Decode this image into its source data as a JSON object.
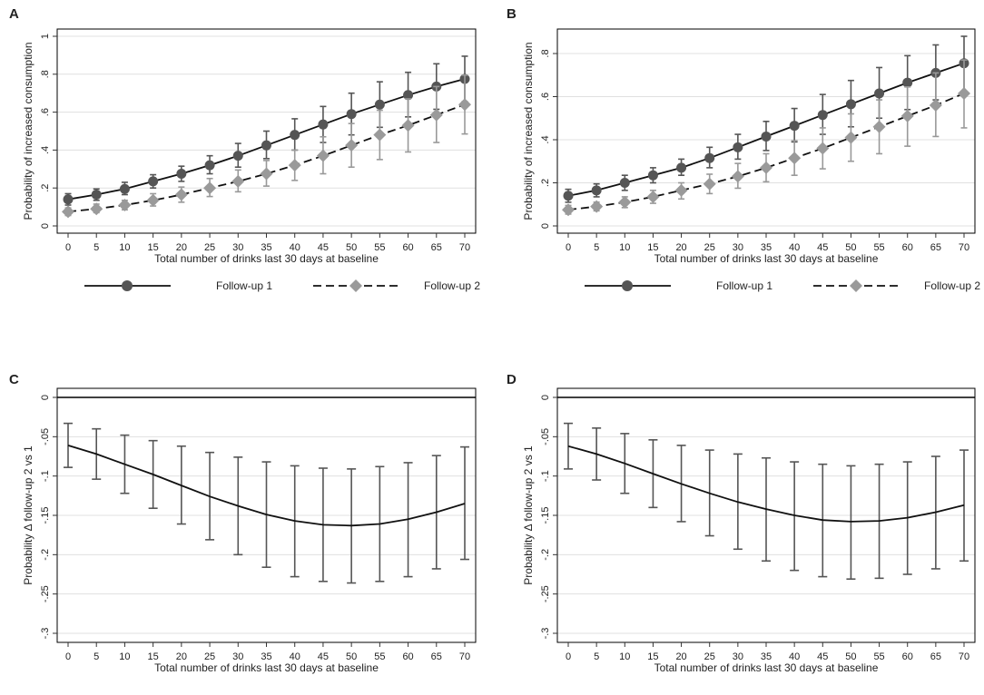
{
  "colors": {
    "fu1": "#555555",
    "fu2": "#9a9a9a",
    "fu1_err": "#555555",
    "fu2_err": "#999999",
    "line": "#111111",
    "grid": "#e0e0e0",
    "frame": "#000000",
    "axis": "#333333"
  },
  "chart_data": [
    {
      "id": "A",
      "panel_label": "A",
      "type": "line",
      "ylabel": "Probability of increased consumption",
      "xlabel": "Total number of drinks last 30 days at baseline",
      "x": [
        0,
        5,
        10,
        15,
        20,
        25,
        30,
        35,
        40,
        45,
        50,
        55,
        60,
        65,
        70
      ],
      "xlim": [
        0,
        70
      ],
      "ylim": [
        0,
        1
      ],
      "yticks": [
        0,
        0.2,
        0.4,
        0.6,
        0.8,
        1
      ],
      "ytick_labels": [
        "0",
        ".2",
        ".4",
        ".6",
        ".8",
        "1"
      ],
      "legend": [
        "Follow-up 1",
        "Follow-up 2"
      ],
      "series": [
        {
          "name": "Follow-up 1",
          "marker": "circle",
          "dash": "solid",
          "values": [
            0.14,
            0.165,
            0.195,
            0.235,
            0.275,
            0.32,
            0.37,
            0.425,
            0.48,
            0.535,
            0.59,
            0.64,
            0.69,
            0.735,
            0.775
          ],
          "lower": [
            0.11,
            0.135,
            0.165,
            0.2,
            0.235,
            0.275,
            0.31,
            0.355,
            0.4,
            0.44,
            0.48,
            0.52,
            0.575,
            0.615,
            0.655
          ],
          "upper": [
            0.17,
            0.195,
            0.23,
            0.27,
            0.315,
            0.37,
            0.435,
            0.5,
            0.565,
            0.63,
            0.7,
            0.76,
            0.81,
            0.855,
            0.895
          ]
        },
        {
          "name": "Follow-up 2",
          "marker": "diamond",
          "dash": "dashed",
          "values": [
            0.075,
            0.09,
            0.11,
            0.135,
            0.165,
            0.2,
            0.235,
            0.275,
            0.32,
            0.37,
            0.425,
            0.48,
            0.53,
            0.585,
            0.64
          ],
          "lower": [
            0.055,
            0.07,
            0.085,
            0.105,
            0.125,
            0.155,
            0.18,
            0.21,
            0.24,
            0.275,
            0.31,
            0.35,
            0.39,
            0.44,
            0.485
          ],
          "upper": [
            0.095,
            0.115,
            0.135,
            0.17,
            0.205,
            0.25,
            0.295,
            0.345,
            0.4,
            0.47,
            0.54,
            0.61,
            0.67,
            0.735,
            0.795
          ]
        }
      ]
    },
    {
      "id": "B",
      "panel_label": "B",
      "type": "line",
      "ylabel": "Probability of increased consumption",
      "xlabel": "Total number of drinks last 30 days at baseline",
      "x": [
        0,
        5,
        10,
        15,
        20,
        25,
        30,
        35,
        40,
        45,
        50,
        55,
        60,
        65,
        70
      ],
      "xlim": [
        0,
        70
      ],
      "ylim": [
        0,
        0.88
      ],
      "yticks": [
        0,
        0.2,
        0.4,
        0.6,
        0.8
      ],
      "ytick_labels": [
        "0",
        ".2",
        ".4",
        ".6",
        ".8"
      ],
      "legend": [
        "Follow-up 1",
        "Follow-up 2"
      ],
      "series": [
        {
          "name": "Follow-up 1",
          "marker": "circle",
          "dash": "solid",
          "values": [
            0.14,
            0.165,
            0.2,
            0.235,
            0.27,
            0.315,
            0.365,
            0.415,
            0.465,
            0.515,
            0.565,
            0.615,
            0.665,
            0.71,
            0.755
          ],
          "lower": [
            0.11,
            0.135,
            0.165,
            0.2,
            0.235,
            0.27,
            0.31,
            0.35,
            0.39,
            0.425,
            0.46,
            0.5,
            0.54,
            0.585,
            0.625
          ],
          "upper": [
            0.17,
            0.195,
            0.235,
            0.27,
            0.31,
            0.365,
            0.425,
            0.485,
            0.545,
            0.61,
            0.675,
            0.735,
            0.79,
            0.84,
            0.88
          ]
        },
        {
          "name": "Follow-up 2",
          "marker": "diamond",
          "dash": "dashed",
          "values": [
            0.075,
            0.09,
            0.11,
            0.135,
            0.165,
            0.195,
            0.23,
            0.27,
            0.315,
            0.36,
            0.41,
            0.46,
            0.51,
            0.56,
            0.615
          ],
          "lower": [
            0.055,
            0.07,
            0.085,
            0.105,
            0.125,
            0.15,
            0.175,
            0.205,
            0.235,
            0.265,
            0.3,
            0.335,
            0.37,
            0.415,
            0.455
          ],
          "upper": [
            0.095,
            0.11,
            0.135,
            0.165,
            0.2,
            0.24,
            0.29,
            0.335,
            0.395,
            0.455,
            0.52,
            0.585,
            0.645,
            0.71,
            0.77
          ]
        }
      ]
    },
    {
      "id": "C",
      "panel_label": "C",
      "type": "line",
      "ylabel": "Probability Δ follow-up 2 vs 1",
      "xlabel": "Total number of drinks last 30 days at baseline",
      "x": [
        0,
        5,
        10,
        15,
        20,
        25,
        30,
        35,
        40,
        45,
        50,
        55,
        60,
        65,
        70
      ],
      "xlim": [
        0,
        70
      ],
      "ylim": [
        -0.3,
        0
      ],
      "yticks": [
        0,
        -0.05,
        -0.1,
        -0.15,
        -0.2,
        -0.25,
        -0.3
      ],
      "ytick_labels": [
        "0",
        "-.05",
        "-.1",
        "-.15",
        "-.2",
        "-.25",
        "-.3"
      ],
      "reference_line": 0,
      "series": [
        {
          "name": "Difference",
          "marker": "none",
          "dash": "solid",
          "values": [
            -0.061,
            -0.072,
            -0.085,
            -0.098,
            -0.112,
            -0.126,
            -0.138,
            -0.149,
            -0.157,
            -0.162,
            -0.163,
            -0.161,
            -0.155,
            -0.146,
            -0.135
          ],
          "lower": [
            -0.089,
            -0.104,
            -0.122,
            -0.141,
            -0.161,
            -0.181,
            -0.2,
            -0.216,
            -0.228,
            -0.234,
            -0.236,
            -0.234,
            -0.228,
            -0.218,
            -0.206
          ],
          "upper": [
            -0.033,
            -0.04,
            -0.048,
            -0.055,
            -0.062,
            -0.07,
            -0.076,
            -0.082,
            -0.087,
            -0.09,
            -0.091,
            -0.088,
            -0.083,
            -0.074,
            -0.063
          ]
        }
      ]
    },
    {
      "id": "D",
      "panel_label": "D",
      "type": "line",
      "ylabel": "Probability Δ follow-up 2 vs 1",
      "xlabel": "Total number of drinks last 30 days at baseline",
      "x": [
        0,
        5,
        10,
        15,
        20,
        25,
        30,
        35,
        40,
        45,
        50,
        55,
        60,
        65,
        70
      ],
      "xlim": [
        0,
        70
      ],
      "ylim": [
        -0.3,
        0
      ],
      "yticks": [
        0,
        -0.05,
        -0.1,
        -0.15,
        -0.2,
        -0.25,
        -0.3
      ],
      "ytick_labels": [
        "0",
        "-.05",
        "-.1",
        "-.15",
        "-.2",
        "-.25",
        "-.3"
      ],
      "reference_line": 0,
      "series": [
        {
          "name": "Difference",
          "marker": "none",
          "dash": "solid",
          "values": [
            -0.062,
            -0.072,
            -0.084,
            -0.097,
            -0.11,
            -0.122,
            -0.133,
            -0.142,
            -0.15,
            -0.156,
            -0.158,
            -0.157,
            -0.153,
            -0.146,
            -0.137
          ],
          "lower": [
            -0.091,
            -0.105,
            -0.122,
            -0.14,
            -0.158,
            -0.176,
            -0.193,
            -0.208,
            -0.22,
            -0.228,
            -0.231,
            -0.23,
            -0.225,
            -0.218,
            -0.208
          ],
          "upper": [
            -0.033,
            -0.039,
            -0.046,
            -0.054,
            -0.061,
            -0.067,
            -0.072,
            -0.077,
            -0.082,
            -0.085,
            -0.087,
            -0.085,
            -0.082,
            -0.075,
            -0.067
          ]
        }
      ]
    }
  ]
}
